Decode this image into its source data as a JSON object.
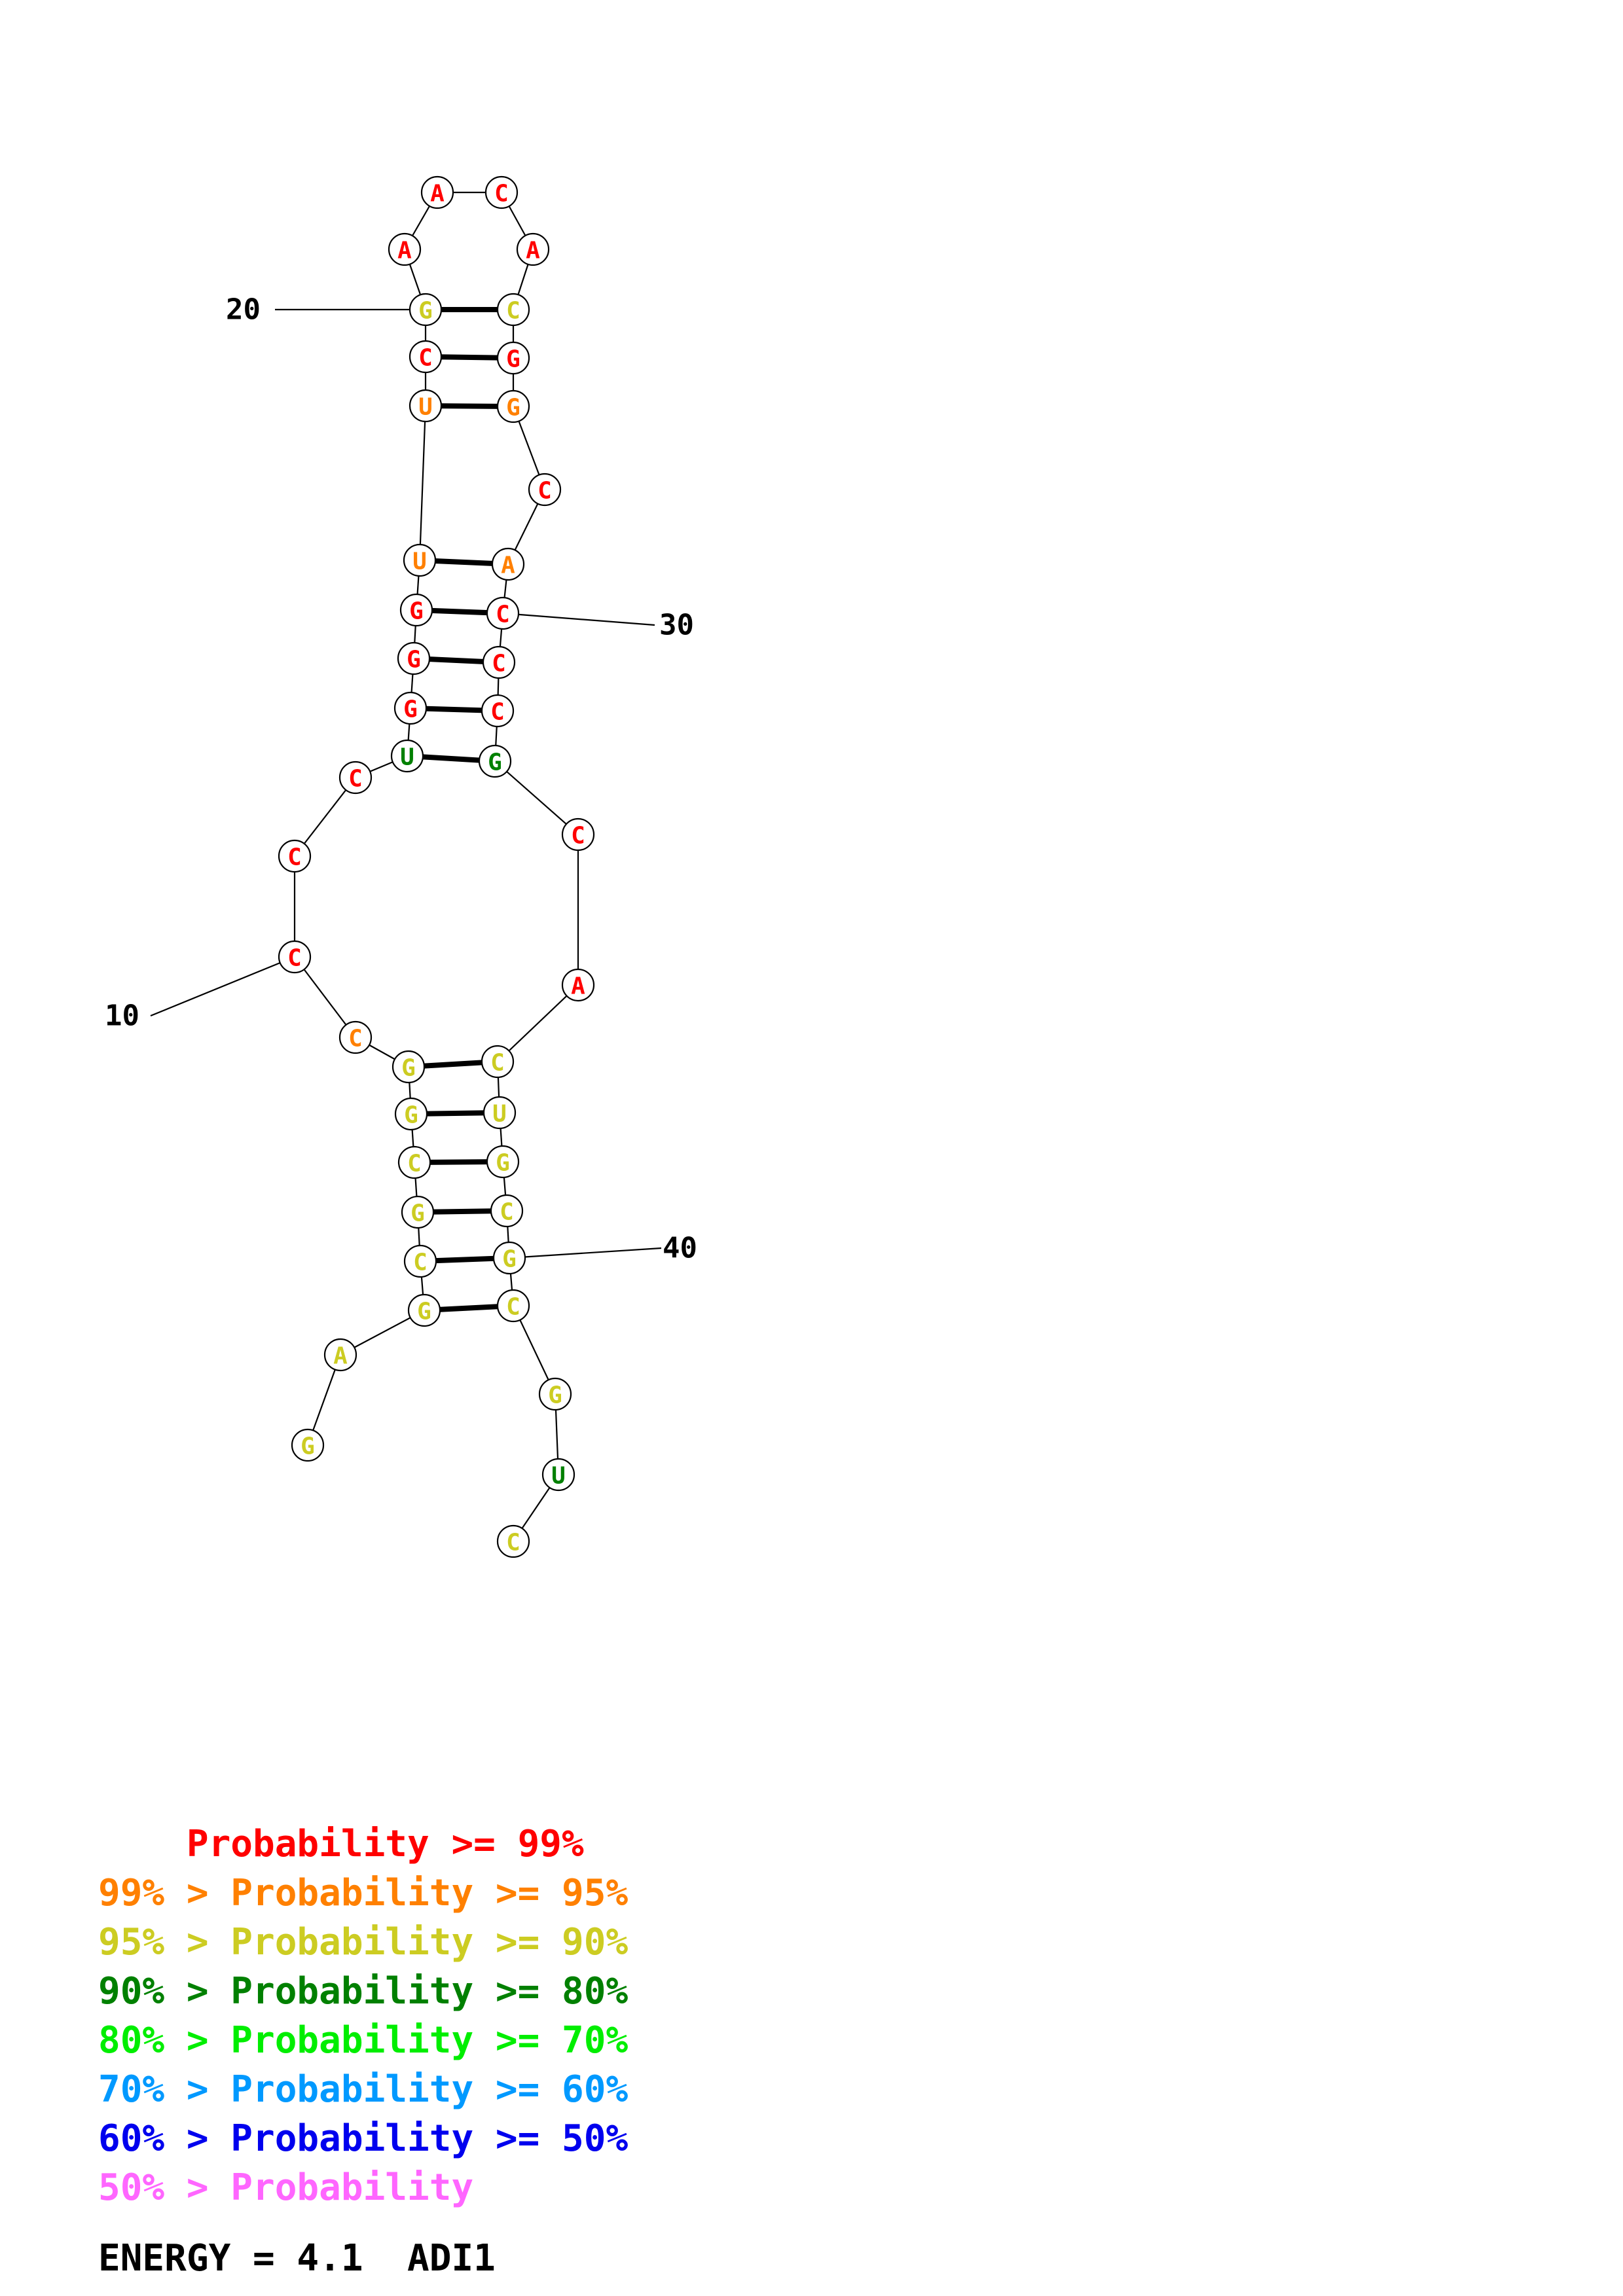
{
  "colors": {
    "p99": "#ff0000",
    "p95": "#ff8000",
    "p90": "#cccc22",
    "p80": "#008000",
    "p70": "#00ee00",
    "p60": "#0099ff",
    "p50": "#0000ee",
    "plow": "#ff66ff"
  },
  "nucleotides": [
    {
      "i": 1,
      "base": "G",
      "c": "p90"
    },
    {
      "i": 2,
      "base": "A",
      "c": "p90"
    },
    {
      "i": 3,
      "base": "G",
      "c": "p90"
    },
    {
      "i": 4,
      "base": "C",
      "c": "p90"
    },
    {
      "i": 5,
      "base": "G",
      "c": "p90"
    },
    {
      "i": 6,
      "base": "C",
      "c": "p90"
    },
    {
      "i": 7,
      "base": "G",
      "c": "p90"
    },
    {
      "i": 8,
      "base": "G",
      "c": "p90"
    },
    {
      "i": 9,
      "base": "C",
      "c": "p95"
    },
    {
      "i": 10,
      "base": "C",
      "c": "p99"
    },
    {
      "i": 11,
      "base": "C",
      "c": "p99"
    },
    {
      "i": 12,
      "base": "C",
      "c": "p99"
    },
    {
      "i": 13,
      "base": "U",
      "c": "p80"
    },
    {
      "i": 14,
      "base": "G",
      "c": "p99"
    },
    {
      "i": 15,
      "base": "G",
      "c": "p99"
    },
    {
      "i": 16,
      "base": "G",
      "c": "p99"
    },
    {
      "i": 17,
      "base": "U",
      "c": "p95"
    },
    {
      "i": 18,
      "base": "U",
      "c": "p95"
    },
    {
      "i": 19,
      "base": "C",
      "c": "p99"
    },
    {
      "i": 20,
      "base": "G",
      "c": "p90"
    },
    {
      "i": 21,
      "base": "A",
      "c": "p99"
    },
    {
      "i": 22,
      "base": "A",
      "c": "p99"
    },
    {
      "i": 23,
      "base": "C",
      "c": "p99"
    },
    {
      "i": 24,
      "base": "A",
      "c": "p99"
    },
    {
      "i": 25,
      "base": "C",
      "c": "p90"
    },
    {
      "i": 26,
      "base": "G",
      "c": "p99"
    },
    {
      "i": 27,
      "base": "G",
      "c": "p95"
    },
    {
      "i": 28,
      "base": "C",
      "c": "p99"
    },
    {
      "i": 29,
      "base": "A",
      "c": "p95"
    },
    {
      "i": 30,
      "base": "C",
      "c": "p99"
    },
    {
      "i": 31,
      "base": "C",
      "c": "p99"
    },
    {
      "i": 32,
      "base": "C",
      "c": "p99"
    },
    {
      "i": 33,
      "base": "G",
      "c": "p80"
    },
    {
      "i": 34,
      "base": "C",
      "c": "p99"
    },
    {
      "i": 35,
      "base": "A",
      "c": "p99"
    },
    {
      "i": 36,
      "base": "C",
      "c": "p90"
    },
    {
      "i": 37,
      "base": "U",
      "c": "p90"
    },
    {
      "i": 38,
      "base": "G",
      "c": "p90"
    },
    {
      "i": 39,
      "base": "C",
      "c": "p90"
    },
    {
      "i": 40,
      "base": "G",
      "c": "p90"
    },
    {
      "i": 41,
      "base": "C",
      "c": "p90"
    },
    {
      "i": 42,
      "base": "G",
      "c": "p90"
    },
    {
      "i": 43,
      "base": "U",
      "c": "p80"
    },
    {
      "i": 44,
      "base": "C",
      "c": "p90"
    }
  ],
  "pairs": [
    [
      3,
      41
    ],
    [
      4,
      40
    ],
    [
      5,
      39
    ],
    [
      6,
      38
    ],
    [
      7,
      37
    ],
    [
      8,
      36
    ],
    [
      13,
      33
    ],
    [
      14,
      32
    ],
    [
      15,
      31
    ],
    [
      16,
      30
    ],
    [
      17,
      29
    ],
    [
      18,
      27
    ],
    [
      19,
      26
    ],
    [
      20,
      25
    ]
  ],
  "position_labels": [
    {
      "text": "10",
      "i": 10
    },
    {
      "text": "20",
      "i": 20
    },
    {
      "text": "30",
      "i": 30
    },
    {
      "text": "40",
      "i": 40
    }
  ],
  "legend": [
    {
      "prefix": "    ",
      "text": "Probability >= 99%",
      "c": "p99"
    },
    {
      "prefix": "",
      "text": "99% > Probability >= 95%",
      "c": "p95"
    },
    {
      "prefix": "",
      "text": "95% > Probability >= 90%",
      "c": "p90"
    },
    {
      "prefix": "",
      "text": "90% > Probability >= 80%",
      "c": "p80"
    },
    {
      "prefix": "",
      "text": "80% > Probability >= 70%",
      "c": "p70"
    },
    {
      "prefix": "",
      "text": "70% > Probability >= 60%",
      "c": "p60"
    },
    {
      "prefix": "",
      "text": "60% > Probability >= 50%",
      "c": "p50"
    },
    {
      "prefix": "",
      "text": "50% > Probability",
      "c": "plow"
    }
  ],
  "footer": {
    "energy": "ENERGY = 4.1",
    "name": "ADI1"
  }
}
